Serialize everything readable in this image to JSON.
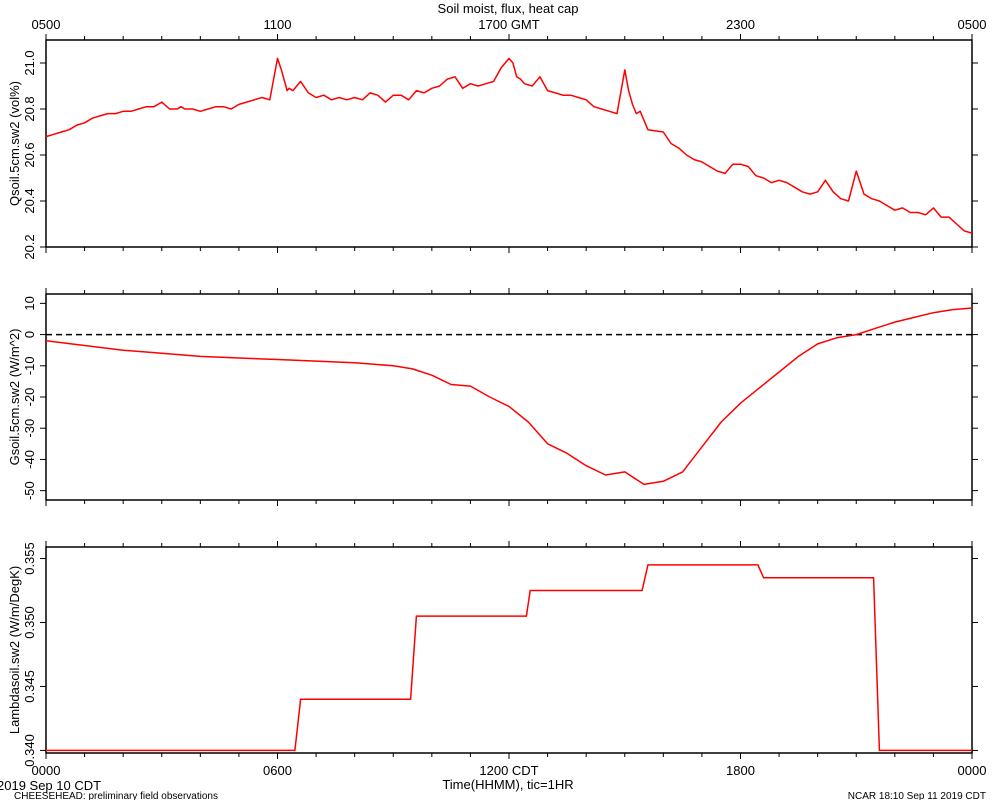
{
  "figure": {
    "title": "Soil moist, flux, heat cap",
    "x_axis_label": "Time(HHMM), tic=1HR",
    "footer_left_date": "2019 Sep 10 CDT",
    "footer_left_note": "CHEESEHEAD: preliminary field observations",
    "footer_right": "NCAR 18:10 Sep 11 2019 CDT",
    "top_ticks": [
      "0500",
      "1100",
      "1700 GMT",
      "2300",
      "0500"
    ],
    "bottom_ticks": [
      "0000",
      "0600",
      "1200 CDT",
      "1800",
      "0000"
    ],
    "line_color": "#ff0000"
  },
  "chart_data": [
    {
      "type": "line",
      "ylabel": "Qsoil.5cm.sw2 (vol%)",
      "ylim": [
        20.2,
        21.1
      ],
      "yticks": [
        "20.2",
        "20.4",
        "20.6",
        "20.8",
        "21.0"
      ],
      "x_units": "hours since 0000 CDT",
      "xlim": [
        0,
        24
      ],
      "series": [
        {
          "x": [
            0,
            0.2,
            0.4,
            0.6,
            0.8,
            1.0,
            1.2,
            1.4,
            1.6,
            1.8,
            2.0,
            2.2,
            2.4,
            2.6,
            2.8,
            3.0,
            3.2,
            3.4,
            3.5,
            3.6,
            3.8,
            4.0,
            4.2,
            4.4,
            4.6,
            4.8,
            5.0,
            5.2,
            5.4,
            5.6,
            5.8,
            6.0,
            6.1,
            6.2,
            6.25,
            6.3,
            6.4,
            6.6,
            6.8,
            7.0,
            7.2,
            7.4,
            7.6,
            7.8,
            8.0,
            8.2,
            8.4,
            8.6,
            8.8,
            9.0,
            9.2,
            9.4,
            9.6,
            9.8,
            10.0,
            10.2,
            10.4,
            10.6,
            10.8,
            11.0,
            11.2,
            11.4,
            11.6,
            11.8,
            12.0,
            12.1,
            12.2,
            12.3,
            12.4,
            12.6,
            12.8,
            13.0,
            13.2,
            13.4,
            13.6,
            13.8,
            14.0,
            14.2,
            14.4,
            14.6,
            14.8,
            15.0,
            15.1,
            15.2,
            15.3,
            15.4,
            15.6,
            16.0,
            16.2,
            16.4,
            16.6,
            16.8,
            17.0,
            17.2,
            17.4,
            17.6,
            17.8,
            18.0,
            18.2,
            18.4,
            18.6,
            18.8,
            19.0,
            19.2,
            19.4,
            19.6,
            19.8,
            20.0,
            20.2,
            20.4,
            20.6,
            20.8,
            21.0,
            21.2,
            21.4,
            21.6,
            21.8,
            22.0,
            22.2,
            22.4,
            22.6,
            22.8,
            23.0,
            23.2,
            23.4,
            23.6,
            23.8,
            24.0
          ],
          "values": [
            20.68,
            20.69,
            20.7,
            20.71,
            20.73,
            20.74,
            20.76,
            20.77,
            20.78,
            20.78,
            20.79,
            20.79,
            20.8,
            20.81,
            20.81,
            20.83,
            20.8,
            20.8,
            20.81,
            20.8,
            20.8,
            20.79,
            20.8,
            20.81,
            20.81,
            20.8,
            20.82,
            20.83,
            20.84,
            20.85,
            20.84,
            21.02,
            20.97,
            20.91,
            20.88,
            20.89,
            20.88,
            20.92,
            20.87,
            20.85,
            20.86,
            20.84,
            20.85,
            20.84,
            20.85,
            20.84,
            20.87,
            20.86,
            20.83,
            20.86,
            20.86,
            20.84,
            20.88,
            20.87,
            20.89,
            20.9,
            20.93,
            20.94,
            20.89,
            20.91,
            20.9,
            20.91,
            20.92,
            20.98,
            21.02,
            21.0,
            20.94,
            20.93,
            20.91,
            20.9,
            20.94,
            20.88,
            20.87,
            20.86,
            20.86,
            20.85,
            20.84,
            20.81,
            20.8,
            20.79,
            20.78,
            20.97,
            20.88,
            20.82,
            20.78,
            20.79,
            20.71,
            20.7,
            20.65,
            20.63,
            20.6,
            20.58,
            20.57,
            20.55,
            20.53,
            20.52,
            20.56,
            20.56,
            20.55,
            20.51,
            20.5,
            20.48,
            20.49,
            20.48,
            20.46,
            20.44,
            20.43,
            20.44,
            20.49,
            20.44,
            20.41,
            20.4,
            20.53,
            20.43,
            20.41,
            20.4,
            20.38,
            20.36,
            20.37,
            20.35,
            20.35,
            20.34,
            20.37,
            20.33,
            20.33,
            20.3,
            20.27,
            20.26
          ]
        }
      ]
    },
    {
      "type": "line",
      "ylabel": "Gsoil.5cm.sw2 (W/m^2)",
      "ylim": [
        -53,
        13
      ],
      "yticks": [
        "-50",
        "-40",
        "-30",
        "-20",
        "-10",
        "0",
        "10"
      ],
      "reference_line": 0,
      "x_units": "hours since 0000 CDT",
      "xlim": [
        0,
        24
      ],
      "series": [
        {
          "x": [
            0,
            1,
            2,
            3,
            4,
            5,
            6,
            7,
            8,
            9,
            9.5,
            10,
            10.5,
            11,
            11.5,
            12,
            12.5,
            13,
            13.5,
            14,
            14.5,
            15,
            15.5,
            16,
            16.5,
            17,
            17.5,
            18,
            18.5,
            19,
            19.5,
            20,
            20.5,
            21,
            21.5,
            22,
            22.5,
            23,
            23.5,
            24
          ],
          "values": [
            -2,
            -3.5,
            -5,
            -6,
            -7,
            -7.5,
            -8,
            -8.5,
            -9,
            -10,
            -11,
            -13,
            -16,
            -16.5,
            -20,
            -23,
            -28,
            -35,
            -38,
            -42,
            -45,
            -44,
            -48,
            -47,
            -44,
            -36,
            -28,
            -22,
            -17,
            -12,
            -7,
            -3,
            -1,
            0,
            2,
            4,
            5.5,
            7,
            8,
            8.5
          ]
        }
      ]
    },
    {
      "type": "line",
      "ylabel": "Lambdasoil.sw2 (W/m/DegK)",
      "ylim": [
        0.3398,
        0.3559
      ],
      "yticks": [
        "0.340",
        "0.345",
        "0.350",
        "0.355"
      ],
      "x_units": "hours since 0000 CDT",
      "xlim": [
        0,
        24
      ],
      "series": [
        {
          "x": [
            0,
            6.45,
            6.6,
            9.45,
            9.6,
            12.45,
            12.55,
            15.45,
            15.6,
            18.45,
            18.6,
            21.45,
            21.6,
            24
          ],
          "values": [
            0.34,
            0.34,
            0.344,
            0.344,
            0.3505,
            0.3505,
            0.3525,
            0.3525,
            0.3545,
            0.3545,
            0.3535,
            0.3535,
            0.34,
            0.34
          ]
        }
      ]
    }
  ]
}
